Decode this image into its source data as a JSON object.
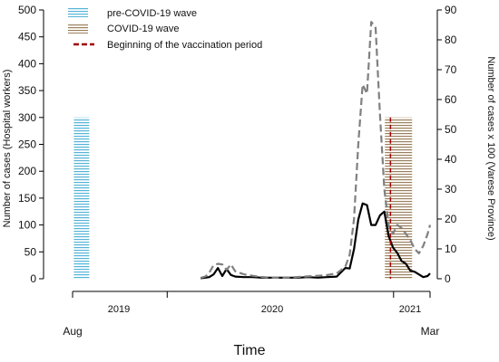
{
  "chart_data": {
    "type": "line",
    "x_axis": {
      "label": "Time",
      "period_labels": [
        "2019",
        "2020",
        "2021"
      ],
      "end_labels": [
        "Aug",
        "Mar"
      ]
    },
    "y_left": {
      "label": "Number of cases (Hospital workers)",
      "ylim": [
        0,
        500
      ],
      "ticks": [
        0,
        50,
        100,
        150,
        200,
        250,
        300,
        350,
        400,
        450,
        500
      ]
    },
    "y_right": {
      "label": "Number of cases x 100 (Varese Province)",
      "ylim": [
        0,
        90
      ],
      "ticks": [
        0,
        10,
        20,
        30,
        40,
        50,
        60,
        70,
        80,
        90
      ]
    },
    "legend": {
      "placement": "top-left",
      "entries": [
        {
          "label": "pre-COVID-19 wave",
          "color": "#55b3d6",
          "style": "hatched"
        },
        {
          "label": "COVID-19 wave",
          "color": "#9b7f5c",
          "style": "hatched"
        },
        {
          "label": "Beginning of the vaccination period",
          "color": "#a00000",
          "style": "dashed"
        }
      ]
    },
    "bands": [
      {
        "series": "pre-COVID-19 wave",
        "color": "#55b3d6",
        "start": "2019-08-03",
        "end": "2019-08-28",
        "value": 300
      },
      {
        "series": "COVID-19 wave",
        "color": "#9b7f5c",
        "start": "2020-12-18",
        "end": "2021-01-31",
        "value": 300
      }
    ],
    "vaccination_start": {
      "date": "2020-12-27",
      "color": "#a00000"
    },
    "series": [
      {
        "axis": "left",
        "color": "#000000",
        "style": "solid",
        "points": [
          [
            "2020-02-24",
            1
          ],
          [
            "2020-03-03",
            2
          ],
          [
            "2020-03-09",
            3
          ],
          [
            "2020-03-16",
            8
          ],
          [
            "2020-03-23",
            20
          ],
          [
            "2020-03-30",
            5
          ],
          [
            "2020-04-06",
            18
          ],
          [
            "2020-04-13",
            7
          ],
          [
            "2020-04-20",
            4
          ],
          [
            "2020-05-04",
            3
          ],
          [
            "2020-05-18",
            3
          ],
          [
            "2020-06-01",
            2
          ],
          [
            "2020-06-15",
            2
          ],
          [
            "2020-07-01",
            2
          ],
          [
            "2020-07-15",
            2
          ],
          [
            "2020-08-01",
            2
          ],
          [
            "2020-08-15",
            3
          ],
          [
            "2020-09-01",
            2
          ],
          [
            "2020-09-15",
            3
          ],
          [
            "2020-10-01",
            4
          ],
          [
            "2020-10-15",
            20
          ],
          [
            "2020-10-22",
            19
          ],
          [
            "2020-10-29",
            55
          ],
          [
            "2020-11-05",
            110
          ],
          [
            "2020-11-12",
            140
          ],
          [
            "2020-11-19",
            137
          ],
          [
            "2020-11-26",
            100
          ],
          [
            "2020-12-03",
            100
          ],
          [
            "2020-12-10",
            118
          ],
          [
            "2020-12-17",
            125
          ],
          [
            "2020-12-24",
            80
          ],
          [
            "2020-12-31",
            58
          ],
          [
            "2021-01-07",
            48
          ],
          [
            "2021-01-14",
            33
          ],
          [
            "2021-01-21",
            28
          ],
          [
            "2021-01-28",
            15
          ],
          [
            "2021-02-04",
            13
          ],
          [
            "2021-02-11",
            8
          ],
          [
            "2021-02-18",
            3
          ],
          [
            "2021-02-25",
            5
          ],
          [
            "2021-03-01",
            10
          ]
        ]
      },
      {
        "axis": "right",
        "color": "#808080",
        "style": "dashed",
        "points": [
          [
            "2020-02-24",
            0.3
          ],
          [
            "2020-03-03",
            0.8
          ],
          [
            "2020-03-09",
            2.0
          ],
          [
            "2020-03-16",
            4.5
          ],
          [
            "2020-03-23",
            5.0
          ],
          [
            "2020-03-30",
            4.8
          ],
          [
            "2020-04-06",
            3.0
          ],
          [
            "2020-04-13",
            4.8
          ],
          [
            "2020-04-20",
            2.5
          ],
          [
            "2020-05-04",
            1.5
          ],
          [
            "2020-05-18",
            1.0
          ],
          [
            "2020-06-01",
            0.6
          ],
          [
            "2020-06-15",
            0.4
          ],
          [
            "2020-07-01",
            0.3
          ],
          [
            "2020-07-15",
            0.4
          ],
          [
            "2020-08-01",
            0.6
          ],
          [
            "2020-08-15",
            0.8
          ],
          [
            "2020-09-01",
            1.0
          ],
          [
            "2020-09-15",
            1.2
          ],
          [
            "2020-10-01",
            1.8
          ],
          [
            "2020-10-15",
            4.0
          ],
          [
            "2020-10-22",
            8.0
          ],
          [
            "2020-10-29",
            20.0
          ],
          [
            "2020-11-05",
            45.0
          ],
          [
            "2020-11-12",
            65.0
          ],
          [
            "2020-11-19",
            62.0
          ],
          [
            "2020-11-26",
            86.0
          ],
          [
            "2020-12-03",
            84.0
          ],
          [
            "2020-12-10",
            55.0
          ],
          [
            "2020-12-17",
            30.0
          ],
          [
            "2020-12-24",
            18.0
          ],
          [
            "2020-12-31",
            15.0
          ],
          [
            "2021-01-07",
            18.0
          ],
          [
            "2021-01-14",
            17.0
          ],
          [
            "2021-01-21",
            15.0
          ],
          [
            "2021-01-28",
            13.0
          ],
          [
            "2021-02-04",
            10.0
          ],
          [
            "2021-02-11",
            8.5
          ],
          [
            "2021-02-18",
            11.0
          ],
          [
            "2021-02-25",
            15.0
          ],
          [
            "2021-03-01",
            18.0
          ]
        ]
      }
    ]
  }
}
